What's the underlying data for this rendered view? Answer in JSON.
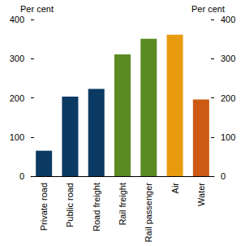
{
  "chart_data": {
    "type": "bar",
    "categories": [
      "Private road",
      "Public road",
      "Road freight",
      "Rail freight",
      "Rail passenger",
      "Air",
      "Water"
    ],
    "values": [
      65,
      203,
      223,
      311,
      351,
      361,
      196
    ],
    "colors": [
      "#0b3a62",
      "#0b3a62",
      "#0b3a62",
      "#5a8a22",
      "#5a8a22",
      "#e89b0c",
      "#cc5a14"
    ],
    "ylabel": "Per cent",
    "ylim": [
      0,
      400
    ],
    "yticks": [
      0,
      100,
      200,
      300,
      400
    ],
    "y2label": "Per cent",
    "y2lim": [
      0,
      400
    ],
    "y2ticks": [
      0,
      100,
      200,
      300,
      400
    ],
    "grid": false
  }
}
